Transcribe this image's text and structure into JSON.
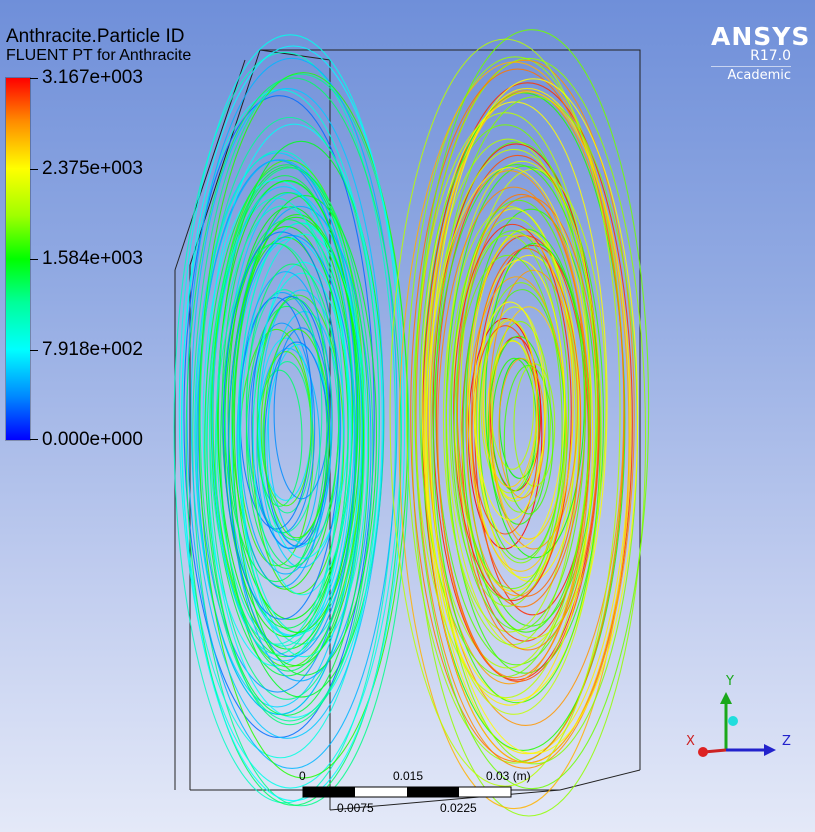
{
  "contour": {
    "variable": "Anthracite.Particle ID",
    "subtitle": "FLUENT PT for Anthracite",
    "legend_values": [
      "3.167e+003",
      "2.375e+003",
      "1.584e+003",
      "7.918e+002",
      "0.000e+000"
    ],
    "colormap": [
      "#ff0000",
      "#ff8c00",
      "#ffff00",
      "#a0ff00",
      "#00ff00",
      "#00ff99",
      "#00ffff",
      "#0088ff",
      "#0000ff"
    ]
  },
  "logo": {
    "brand": "ANSYS",
    "version": "R17.0",
    "edition": "Academic"
  },
  "scale_bar": {
    "top_labels": [
      "0",
      "0.015",
      "0.03  (m)"
    ],
    "bottom_labels": [
      "0.0075",
      "0.0225"
    ]
  },
  "triad": {
    "x": "X",
    "y": "Y",
    "z": "Z"
  }
}
